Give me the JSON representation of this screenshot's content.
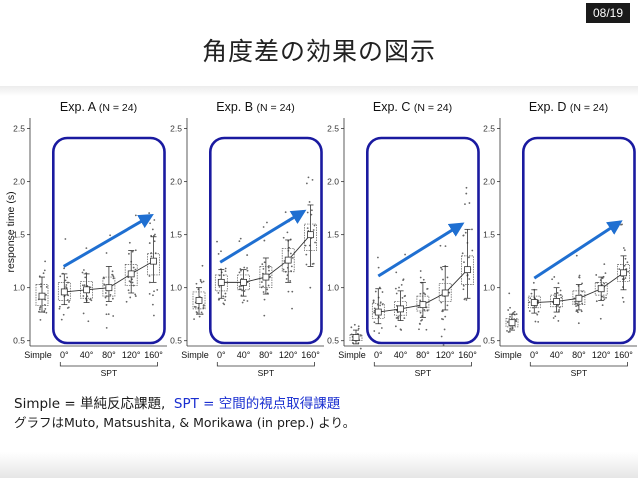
{
  "page_number": "08/19",
  "title": "角度差の効果の図示",
  "caption": {
    "simple_def": "Simple = 単純反応課題,",
    "spt_def": "SPT = 空間的視点取得課題",
    "source": "グラフはMuto, Matsushita, & Morikawa (in prep.) より。"
  },
  "colors": {
    "box_highlight": "#1a1aa0",
    "arrow": "#1f6fd1",
    "page_badge": "#1a1a1a",
    "spt_text": "#1a2fd0"
  },
  "chart_data": {
    "type": "box",
    "ylabel": "response time (s)",
    "ylim": [
      0.45,
      2.6
    ],
    "yticks": [
      "0.5",
      "1.0",
      "1.5",
      "2.0",
      "2.5"
    ],
    "categories": [
      "Simple",
      "0°",
      "40°",
      "80°",
      "120°",
      "160°"
    ],
    "group_label": "SPT",
    "panels": [
      {
        "title": "Exp. A",
        "n_label": "(N = 24)",
        "means": [
          0.92,
          0.96,
          0.98,
          1.0,
          1.13,
          1.25
        ],
        "box_q1": [
          0.83,
          0.88,
          0.9,
          0.92,
          1.02,
          1.12
        ],
        "box_q3": [
          1.03,
          1.05,
          1.06,
          1.1,
          1.22,
          1.32
        ],
        "ci_low": [
          0.77,
          0.84,
          0.86,
          0.87,
          0.95,
          1.05
        ],
        "ci_high": [
          1.1,
          1.13,
          1.13,
          1.2,
          1.35,
          1.48
        ],
        "arrow": [
          [
            0.97,
            1.2
          ],
          [
            4.9,
            1.68
          ]
        ]
      },
      {
        "title": "Exp. B",
        "n_label": "(N = 24)",
        "means": [
          0.88,
          1.05,
          1.05,
          1.1,
          1.26,
          1.5
        ],
        "box_q1": [
          0.8,
          0.97,
          0.98,
          1.0,
          1.15,
          1.35
        ],
        "box_q3": [
          0.96,
          1.12,
          1.12,
          1.2,
          1.37,
          1.6
        ],
        "ci_low": [
          0.75,
          0.9,
          0.92,
          0.94,
          1.05,
          1.2
        ],
        "ci_high": [
          1.0,
          1.17,
          1.17,
          1.28,
          1.45,
          1.78
        ],
        "arrow": [
          [
            0.95,
            1.24
          ],
          [
            4.7,
            1.72
          ]
        ]
      },
      {
        "title": "Exp. C",
        "n_label": "(N = 24)",
        "means": [
          0.53,
          0.77,
          0.8,
          0.84,
          0.95,
          1.17
        ],
        "box_q1": [
          0.5,
          0.71,
          0.74,
          0.78,
          0.87,
          1.03
        ],
        "box_q3": [
          0.56,
          0.85,
          0.87,
          0.92,
          1.04,
          1.3
        ],
        "ci_low": [
          0.47,
          0.66,
          0.69,
          0.72,
          0.79,
          0.9
        ],
        "ci_high": [
          0.6,
          0.99,
          0.97,
          1.05,
          1.2,
          1.55
        ],
        "arrow": [
          [
            1.0,
            1.11
          ],
          [
            4.75,
            1.6
          ]
        ]
      },
      {
        "title": "Exp. D",
        "n_label": "(N = 24)",
        "means": [
          0.67,
          0.86,
          0.87,
          0.9,
          0.99,
          1.14
        ],
        "box_q1": [
          0.63,
          0.81,
          0.82,
          0.84,
          0.93,
          1.06
        ],
        "box_q3": [
          0.71,
          0.92,
          0.93,
          0.97,
          1.05,
          1.22
        ],
        "ci_low": [
          0.6,
          0.76,
          0.77,
          0.79,
          0.88,
          0.98
        ],
        "ci_high": [
          0.75,
          0.98,
          1.0,
          1.03,
          1.1,
          1.3
        ],
        "arrow": [
          [
            1.0,
            1.09
          ],
          [
            4.85,
            1.62
          ]
        ]
      }
    ]
  }
}
